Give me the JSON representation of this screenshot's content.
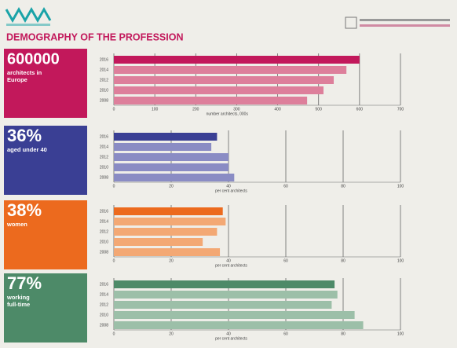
{
  "title": "DEMOGRAPHY OF THE PROFESSION",
  "chart_data": [
    {
      "type": "bar",
      "orientation": "horizontal",
      "headline": "600000",
      "caption": "architects in Europe",
      "categories": [
        "2016",
        "2014",
        "2012",
        "2010",
        "2008"
      ],
      "values": [
        600,
        568,
        537,
        512,
        472
      ],
      "xlim": [
        0,
        700
      ],
      "xticks": [
        0,
        100,
        200,
        300,
        400,
        500,
        600,
        700
      ],
      "xlabel": "number architects, 000s",
      "highlight_color": "#c2185b",
      "color": "#dd7f9b",
      "panel_color": "#c2185b",
      "grid": true
    },
    {
      "type": "bar",
      "orientation": "horizontal",
      "headline": "36%",
      "caption": "aged under 40",
      "categories": [
        "2016",
        "2014",
        "2012",
        "2010",
        "2008"
      ],
      "values": [
        36,
        34,
        40,
        40,
        42
      ],
      "xlim": [
        0,
        100
      ],
      "xticks": [
        0,
        20,
        40,
        60,
        80,
        100
      ],
      "xlabel": "per cent architects",
      "highlight_color": "#3a3f94",
      "color": "#8a8cc4",
      "panel_color": "#3a3f94",
      "grid": true
    },
    {
      "type": "bar",
      "orientation": "horizontal",
      "headline": "38%",
      "caption": "women",
      "categories": [
        "2016",
        "2014",
        "2012",
        "2010",
        "2008"
      ],
      "values": [
        38,
        39,
        36,
        31,
        37
      ],
      "xlim": [
        0,
        100
      ],
      "xticks": [
        0,
        20,
        40,
        60,
        80,
        100
      ],
      "xlabel": "per cent architects",
      "highlight_color": "#ec6a1e",
      "color": "#f3a874",
      "panel_color": "#ec6a1e",
      "grid": true
    },
    {
      "type": "bar",
      "orientation": "horizontal",
      "headline": "77%",
      "caption": "working full-time",
      "categories": [
        "2016",
        "2014",
        "2012",
        "2010",
        "2008"
      ],
      "values": [
        77,
        78,
        76,
        84,
        87
      ],
      "xlim": [
        0,
        100
      ],
      "xticks": [
        0,
        20,
        40,
        60,
        80,
        100
      ],
      "xlabel": "per cent architects",
      "highlight_color": "#4d8a68",
      "color": "#9cbfa8",
      "panel_color": "#4d8a68",
      "grid": true
    }
  ]
}
